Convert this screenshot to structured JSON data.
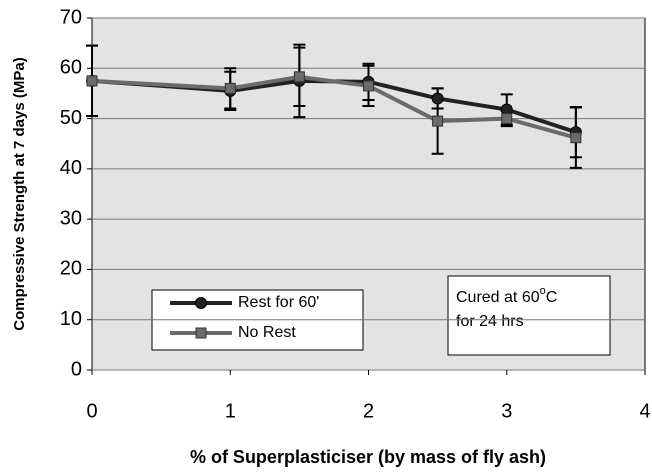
{
  "chart_data": {
    "type": "line",
    "xlabel": "% of Superplasticiser (by mass of fly ash)",
    "ylabel": "Compressive Strength at 7 days (MPa)",
    "xlim": [
      0,
      4
    ],
    "xticks": [
      0,
      1,
      2,
      3,
      4
    ],
    "ylim": [
      0,
      70
    ],
    "yticks": [
      0,
      10,
      20,
      30,
      40,
      50,
      60,
      70
    ],
    "grid": true,
    "annotation": [
      "Cured at 60",
      "o",
      "C",
      "for 24 hrs"
    ],
    "x": [
      0,
      1,
      1.5,
      2,
      2.5,
      3,
      3.5
    ],
    "series": [
      {
        "name": "Rest for 60'",
        "color": "#222222",
        "marker": "circle",
        "values": [
          57.5,
          55.5,
          57.5,
          57.3,
          54,
          51.8,
          47.3
        ],
        "errors": [
          7,
          3.8,
          7.2,
          3.6,
          2,
          3,
          5
        ]
      },
      {
        "name": "No Rest",
        "color": "#6b6b6b",
        "marker": "square",
        "values": [
          57.5,
          56,
          58.3,
          56.5,
          49.5,
          50,
          46.2
        ],
        "errors": [
          7,
          4,
          5.8,
          4,
          6.5,
          1.5,
          6
        ]
      }
    ]
  }
}
